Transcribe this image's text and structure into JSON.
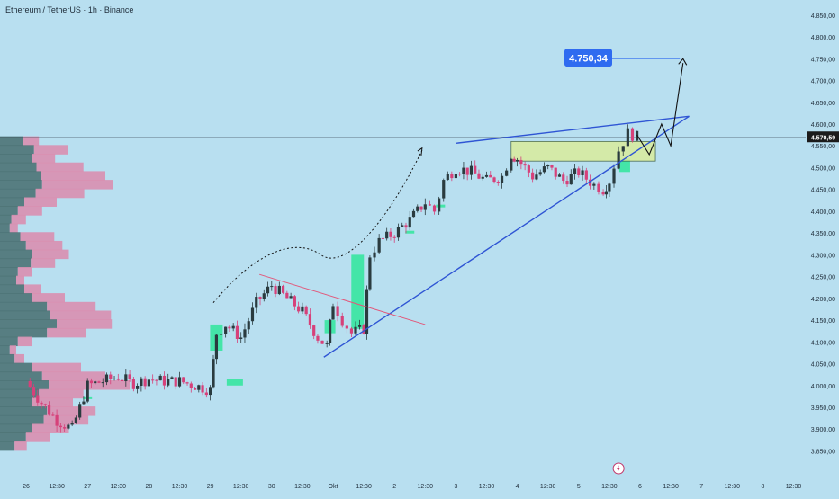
{
  "header": {
    "title": "Ethereum / TetherUS · 1h · Binance"
  },
  "colors": {
    "background": "#b8dff0",
    "candle_up": "#2a3b3f",
    "candle_down": "#d6417a",
    "trendline": "#2f55d4",
    "resistance_line": "#e2577a",
    "zone_fill": "#d9ec9c",
    "zone_stroke": "#3a5a3a",
    "green_marker": "#37e5a0",
    "target_label_bg": "#2f6bf0",
    "current_price_bg": "#1b1b1b",
    "vp_up": "#4d7376",
    "vp_down": "#d98fb0"
  },
  "chart_data": {
    "type": "candlestick",
    "title": "Ethereum / TetherUS · 1h · Binance",
    "xlabel": "",
    "ylabel": "",
    "ylim": [
      3820,
      4860
    ],
    "y_ticks": [
      "4.850,00",
      "4.800,00",
      "4.750,00",
      "4.700,00",
      "4.650,00",
      "4.600,00",
      "4.550,00",
      "4.500,00",
      "4.450,00",
      "4.400,00",
      "4.350,00",
      "4.300,00",
      "4.250,00",
      "4.200,00",
      "4.150,00",
      "4.100,00",
      "4.050,00",
      "4.000,00",
      "3.950,00",
      "3.900,00",
      "3.850,00"
    ],
    "x_ticks": [
      "26",
      "12:30",
      "27",
      "12:30",
      "28",
      "12:30",
      "29",
      "12:30",
      "30",
      "12:30",
      "Okt",
      "12:30",
      "2",
      "12:30",
      "3",
      "12:30",
      "4",
      "12:30",
      "5",
      "12:30",
      "6",
      "12:30",
      "7",
      "12:30",
      "8",
      "12:30"
    ],
    "current_price": {
      "value": 4570.59,
      "label": "4.570,59"
    },
    "target": {
      "value": 4750.34,
      "label": "4.750,34"
    },
    "price_path": [
      [
        0.0,
        4010
      ],
      [
        0.5,
        3960
      ],
      [
        1.0,
        3920
      ],
      [
        1.5,
        3900
      ],
      [
        2.0,
        4000
      ],
      [
        2.5,
        4010
      ],
      [
        3.0,
        4020
      ],
      [
        3.5,
        4005
      ],
      [
        4.0,
        4015
      ],
      [
        4.5,
        4010
      ],
      [
        5.0,
        4010
      ],
      [
        5.5,
        4000
      ],
      [
        6.0,
        3990
      ],
      [
        6.2,
        4120
      ],
      [
        6.5,
        4140
      ],
      [
        7.0,
        4110
      ],
      [
        7.5,
        4190
      ],
      [
        8.0,
        4230
      ],
      [
        8.5,
        4200
      ],
      [
        9.0,
        4170
      ],
      [
        9.5,
        4110
      ],
      [
        9.8,
        4090
      ],
      [
        10.0,
        4190
      ],
      [
        10.3,
        4150
      ],
      [
        10.6,
        4120
      ],
      [
        11.0,
        4130
      ],
      [
        11.2,
        4300
      ],
      [
        11.5,
        4330
      ],
      [
        12.0,
        4350
      ],
      [
        12.5,
        4380
      ],
      [
        13.0,
        4420
      ],
      [
        13.3,
        4400
      ],
      [
        13.6,
        4470
      ],
      [
        14.0,
        4500
      ],
      [
        14.5,
        4490
      ],
      [
        15.0,
        4470
      ],
      [
        15.5,
        4480
      ],
      [
        15.8,
        4530
      ],
      [
        16.0,
        4520
      ],
      [
        16.5,
        4480
      ],
      [
        17.0,
        4500
      ],
      [
        17.5,
        4470
      ],
      [
        18.0,
        4490
      ],
      [
        18.5,
        4460
      ],
      [
        18.8,
        4450
      ],
      [
        19.0,
        4470
      ],
      [
        19.3,
        4540
      ],
      [
        19.6,
        4580
      ],
      [
        19.9,
        4570
      ]
    ],
    "volume_profile": {
      "levels": [
        4560,
        4540,
        4520,
        4500,
        4480,
        4460,
        4440,
        4420,
        4400,
        4380,
        4360,
        4340,
        4320,
        4300,
        4280,
        4260,
        4240,
        4220,
        4200,
        4180,
        4160,
        4140,
        4120,
        4100,
        4080,
        4060,
        4040,
        4020,
        4000,
        3980,
        3960,
        3940,
        3920,
        3900,
        3880,
        3860
      ],
      "up": [
        28,
        42,
        40,
        45,
        50,
        52,
        44,
        30,
        22,
        14,
        12,
        25,
        32,
        40,
        38,
        22,
        20,
        30,
        40,
        58,
        62,
        70,
        58,
        22,
        12,
        18,
        40,
        52,
        60,
        48,
        40,
        58,
        54,
        40,
        32,
        18
      ],
      "down": [
        20,
        42,
        28,
        58,
        80,
        88,
        60,
        40,
        30,
        18,
        10,
        42,
        45,
        45,
        30,
        18,
        10,
        20,
        40,
        60,
        75,
        68,
        48,
        18,
        8,
        12,
        60,
        78,
        100,
        55,
        50,
        60,
        55,
        45,
        30,
        15
      ]
    }
  },
  "annotations": {
    "event_icon": "lightning-icon"
  }
}
